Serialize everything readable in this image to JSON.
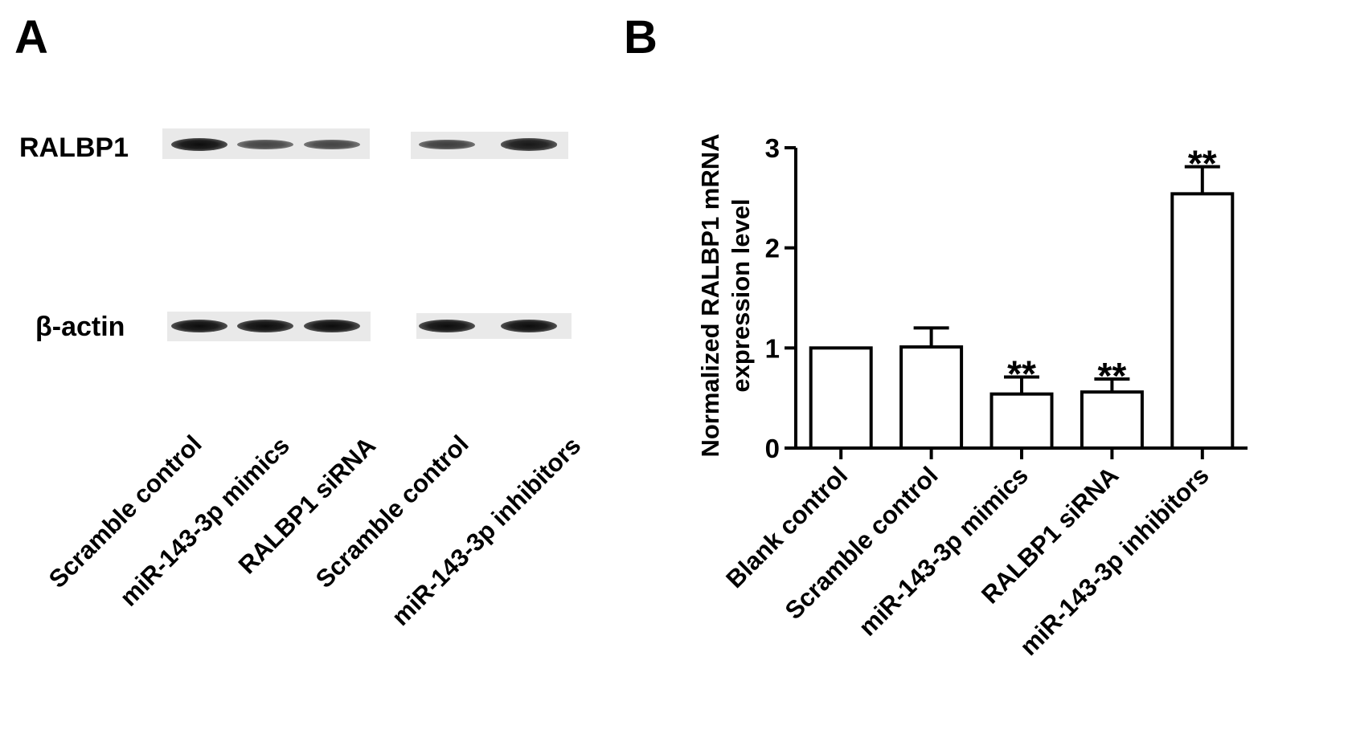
{
  "panelA": {
    "letter": "A",
    "rows": [
      {
        "label": "RALBP1",
        "intensities": [
          1.0,
          0.55,
          0.55,
          0.6,
          0.9
        ]
      },
      {
        "label": "β-actin",
        "intensities": [
          1.0,
          1.0,
          1.0,
          1.0,
          1.0
        ]
      }
    ],
    "lanes": [
      "Scramble control",
      "miR-143-3p mimics",
      "RALBP1 siRNA",
      "Scramble control",
      "miR-143-3p  inhibitors"
    ]
  },
  "panelB": {
    "letter": "B"
  },
  "chart_data": {
    "type": "bar",
    "categories": [
      "Blank control",
      "Scramble control",
      "miR-143-3p mimics",
      "RALBP1 siRNA",
      "miR-143-3p  inhibitors"
    ],
    "values": [
      1.0,
      1.01,
      0.54,
      0.56,
      2.54
    ],
    "errors": [
      0,
      0.19,
      0.17,
      0.13,
      0.27
    ],
    "annotations": [
      "",
      "",
      "**",
      "**",
      "**"
    ],
    "ylabel_line1": "Normalized  RALBP1 mRNA",
    "ylabel_line2": "expression level",
    "xlabel": "",
    "ylim": [
      0,
      3
    ],
    "yticks": [
      "0",
      "1",
      "2",
      "3"
    ],
    "grid": false,
    "bar_fill": "#ffffff",
    "bar_stroke": "#000000"
  }
}
